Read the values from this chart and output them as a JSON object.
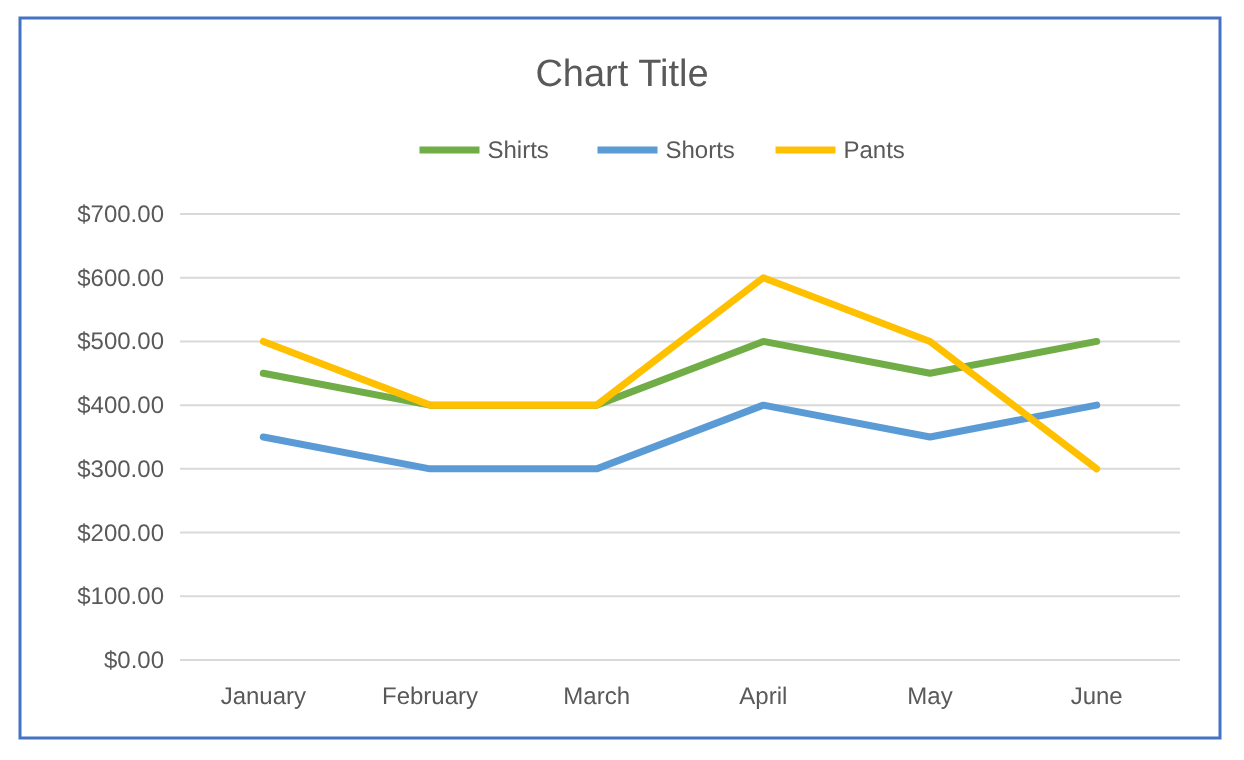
{
  "chart_data": {
    "type": "line",
    "title": "Chart Title",
    "categories": [
      "January",
      "February",
      "March",
      "April",
      "May",
      "June"
    ],
    "series": [
      {
        "name": "Shirts",
        "color": "#70ad47",
        "values": [
          450,
          400,
          400,
          500,
          450,
          500
        ]
      },
      {
        "name": "Shorts",
        "color": "#5b9bd5",
        "values": [
          350,
          300,
          300,
          400,
          350,
          400
        ]
      },
      {
        "name": "Pants",
        "color": "#ffc000",
        "values": [
          500,
          400,
          400,
          600,
          500,
          300
        ]
      }
    ],
    "ylim": [
      0,
      700
    ],
    "yticks": [
      {
        "value": 0,
        "label": "$0.00"
      },
      {
        "value": 100,
        "label": "$100.00"
      },
      {
        "value": 200,
        "label": "$200.00"
      },
      {
        "value": 300,
        "label": "$300.00"
      },
      {
        "value": 400,
        "label": "$400.00"
      },
      {
        "value": 500,
        "label": "$500.00"
      },
      {
        "value": 600,
        "label": "$600.00"
      },
      {
        "value": 700,
        "label": "$700.00"
      }
    ],
    "grid": "y",
    "legend": "top",
    "marker": "none",
    "line_style": "solid"
  }
}
